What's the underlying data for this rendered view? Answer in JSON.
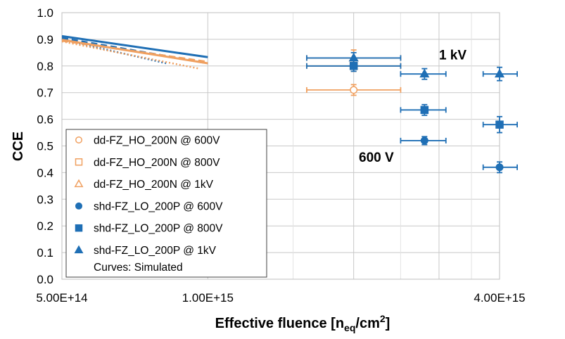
{
  "chart_data": {
    "type": "scatter",
    "xlabel_main": "Effective fluence [n",
    "xlabel_sub": "eq",
    "xlabel_mid": "/cm",
    "xlabel_sup": "2",
    "xlabel_end": "]",
    "ylabel": "CCE",
    "x_scale": "log",
    "xlim": [
      500000000000000.0,
      4000000000000000.0
    ],
    "ylim": [
      0.0,
      1.0
    ],
    "x_tick_labels": [
      {
        "value": 500000000000000.0,
        "label": "5.00E+14"
      },
      {
        "value": 1000000000000000.0,
        "label": "1.00E+15"
      },
      {
        "value": 4000000000000000.0,
        "label": "4.00E+15"
      }
    ],
    "x_minor_gridlines": [
      2000000000000000.0,
      3000000000000000.0
    ],
    "x_faint_gridlines": [
      1500000000000000.0,
      2500000000000000.0,
      3500000000000000.0
    ],
    "y_ticks": [
      "0.0",
      "0.1",
      "0.2",
      "0.3",
      "0.4",
      "0.5",
      "0.6",
      "0.7",
      "0.8",
      "0.9",
      "1.0"
    ],
    "y_tick_values": [
      0.0,
      0.1,
      0.2,
      0.3,
      0.4,
      0.5,
      0.6,
      0.7,
      0.8,
      0.9,
      1.0
    ],
    "grid": true,
    "legend_position": "bottom-left",
    "colors": {
      "orange": "#F0A060",
      "blue": "#1F6FB5"
    },
    "annotations": [
      {
        "text": "1 kV",
        "x": 3000000000000000.0,
        "y": 0.825
      },
      {
        "text": "600 V",
        "x": 2050000000000000.0,
        "y": 0.44
      }
    ],
    "series": [
      {
        "name": "dd-FZ_HO_200N @ 600V",
        "color": "#F0A060",
        "marker": "circle-open",
        "points": [
          {
            "x": 2000000000000000.0,
            "y": 0.71,
            "xerr": [
              1600000000000000.0,
              2500000000000000.0
            ],
            "yerr": 0.02
          }
        ]
      },
      {
        "name": "dd-FZ_HO_200N @ 800V",
        "color": "#F0A060",
        "marker": "square-open",
        "points": [
          {
            "x": 2000000000000000.0,
            "y": 0.8,
            "xerr": [
              1600000000000000.0,
              2500000000000000.0
            ],
            "yerr": 0.02
          }
        ]
      },
      {
        "name": "dd-FZ_HO_200N @ 1kV",
        "color": "#F0A060",
        "marker": "triangle-open",
        "points": [
          {
            "x": 2000000000000000.0,
            "y": 0.83,
            "xerr": [
              1600000000000000.0,
              2500000000000000.0
            ],
            "yerr": 0.03
          }
        ]
      },
      {
        "name": "shd-FZ_LO_200P @ 600V",
        "color": "#1F6FB5",
        "marker": "circle",
        "points": [
          {
            "x": 2800000000000000.0,
            "y": 0.52,
            "xerr": [
              2500000000000000.0,
              3100000000000000.0
            ],
            "yerr": 0.015
          },
          {
            "x": 4000000000000000.0,
            "y": 0.42,
            "xerr": [
              3700000000000000.0,
              4350000000000000.0
            ],
            "yerr": 0.02
          }
        ]
      },
      {
        "name": "shd-FZ_LO_200P @ 800V",
        "color": "#1F6FB5",
        "marker": "square",
        "points": [
          {
            "x": 2000000000000000.0,
            "y": 0.8,
            "xerr": [
              1600000000000000.0,
              2500000000000000.0
            ],
            "yerr": 0.02
          },
          {
            "x": 2800000000000000.0,
            "y": 0.635,
            "xerr": [
              2500000000000000.0,
              3100000000000000.0
            ],
            "yerr": 0.02
          },
          {
            "x": 4000000000000000.0,
            "y": 0.58,
            "xerr": [
              3700000000000000.0,
              4350000000000000.0
            ],
            "yerr": 0.03
          }
        ]
      },
      {
        "name": "shd-FZ_LO_200P @ 1kV",
        "color": "#1F6FB5",
        "marker": "triangle",
        "points": [
          {
            "x": 2000000000000000.0,
            "y": 0.83,
            "xerr": [
              1600000000000000.0,
              2500000000000000.0
            ],
            "yerr": 0.02
          },
          {
            "x": 2800000000000000.0,
            "y": 0.77,
            "xerr": [
              2500000000000000.0,
              3100000000000000.0
            ],
            "yerr": 0.02
          },
          {
            "x": 4000000000000000.0,
            "y": 0.77,
            "xerr": [
              3700000000000000.0,
              4350000000000000.0
            ],
            "yerr": 0.025
          }
        ]
      }
    ],
    "legend_note": "Curves: Simulated",
    "curves": [
      {
        "color": "#1F6FB5",
        "style": "solid",
        "width": 3,
        "points": [
          [
            500000000000000.0,
            0.912
          ],
          [
            1000000000000000.0,
            0.833
          ]
        ]
      },
      {
        "color": "#1F6FB5",
        "style": "dashed",
        "width": 3,
        "points": [
          [
            500000000000000.0,
            0.905
          ],
          [
            1000000000000000.0,
            0.81
          ]
        ]
      },
      {
        "color": "#1F6FB5",
        "style": "dotted",
        "width": 2.5,
        "points": [
          [
            500000000000000.0,
            0.9
          ],
          [
            820000000000000.0,
            0.81
          ]
        ]
      },
      {
        "color": "#F0A060",
        "style": "solid",
        "width": 3,
        "points": [
          [
            500000000000000.0,
            0.898
          ],
          [
            1000000000000000.0,
            0.81
          ]
        ]
      },
      {
        "color": "#F0A060",
        "style": "dashed",
        "width": 3,
        "points": [
          [
            500000000000000.0,
            0.895
          ],
          [
            1000000000000000.0,
            0.815
          ]
        ]
      },
      {
        "color": "#F0A060",
        "style": "dotted",
        "width": 2.5,
        "points": [
          [
            500000000000000.0,
            0.892
          ],
          [
            960000000000000.0,
            0.79
          ]
        ]
      }
    ]
  }
}
